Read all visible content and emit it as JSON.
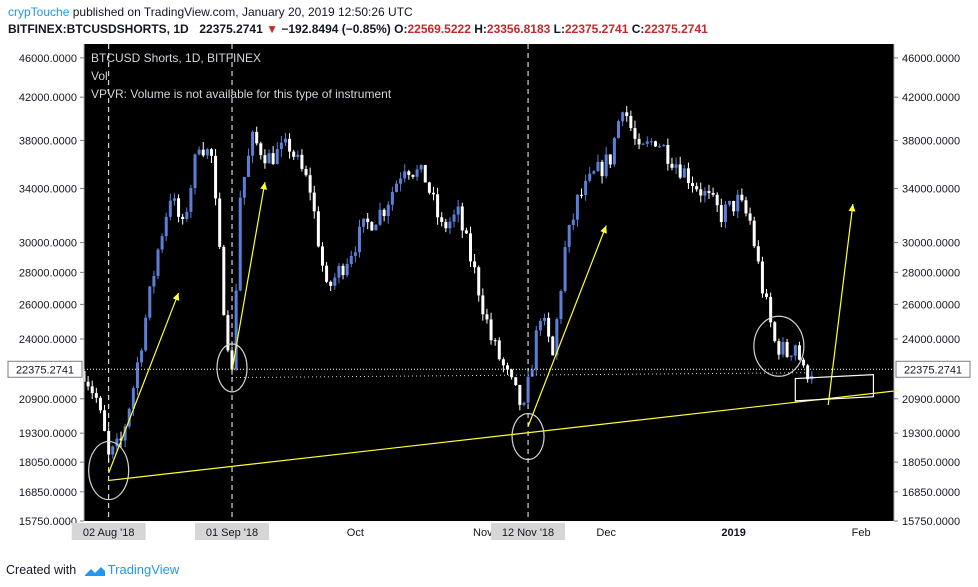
{
  "header": {
    "author": "crypTouche",
    "published_text": "published on TradingView.com, January 20, 2019 12:50:26 UTC",
    "symbol": "BITFINEX:BTCUSDSHORTS, 1D",
    "last": "22375.2741",
    "change_arrow": "▼",
    "change": "−192.8494 (−0.85%)",
    "o_label": "O:",
    "o_value": "22569.5222",
    "h_label": "H:",
    "h_value": "23356.8183",
    "l_label": "L:",
    "l_value": "22375.2741",
    "c_label": "C:",
    "c_value": "22375.2741"
  },
  "legend": {
    "title": "BTCUSD Shorts, 1D, BITFINEX",
    "vol": "Vol",
    "vpvr": "VPVR: Volume is not available for this type of instrument"
  },
  "footer": {
    "created_with": "Created with",
    "brand": "TradingView",
    "logo_icon": "tradingview-logo-icon"
  },
  "colors": {
    "up": "#5b7fd6",
    "down": "#ffffff",
    "background": "#000000",
    "annotation": "#ffff33",
    "price_line": "#ffffff"
  },
  "chart_data": {
    "type": "candlestick",
    "title": "BTCUSD Shorts, 1D, BITFINEX",
    "y_scale": "log",
    "ylim": [
      15750,
      47500
    ],
    "y_ticks": [
      "46000.0000",
      "42000.0000",
      "38000.0000",
      "34000.0000",
      "30000.0000",
      "28000.0000",
      "26000.0000",
      "24000.0000",
      "20900.0000",
      "19300.0000",
      "18050.0000",
      "16850.0000",
      "15750.0000"
    ],
    "x_range": [
      "2018-07-27",
      "2019-02-09"
    ],
    "x_ticks": [
      {
        "date": "2018-08-02",
        "label": "02 Aug '18",
        "boxed": true
      },
      {
        "date": "2018-09-01",
        "label": "01 Sep '18",
        "boxed": true
      },
      {
        "date": "2018-10-01",
        "label": "Oct",
        "boxed": false
      },
      {
        "date": "2018-11-01",
        "label": "Nov",
        "boxed": false
      },
      {
        "date": "2018-11-12",
        "label": "12 Nov '18",
        "boxed": true
      },
      {
        "date": "2018-12-01",
        "label": "Dec",
        "boxed": false
      },
      {
        "date": "2019-01-01",
        "label": "2019",
        "boxed": false,
        "bold": true
      },
      {
        "date": "2019-02-01",
        "label": "Feb",
        "boxed": false
      }
    ],
    "vertical_markers": [
      "2018-08-02",
      "2018-09-01",
      "2018-11-12"
    ],
    "last_price": {
      "value": 22375.2741,
      "label": "22375.2741"
    },
    "candle_anchors": [
      [
        "2018-07-27",
        22300
      ],
      [
        "2018-07-30",
        20900
      ],
      [
        "2018-08-01",
        19200
      ],
      [
        "2018-08-02",
        18200
      ],
      [
        "2018-08-05",
        18900
      ],
      [
        "2018-08-08",
        21500
      ],
      [
        "2018-08-11",
        25200
      ],
      [
        "2018-08-14",
        29500
      ],
      [
        "2018-08-17",
        33500
      ],
      [
        "2018-08-20",
        31000
      ],
      [
        "2018-08-24",
        38000
      ],
      [
        "2018-08-27",
        36500
      ],
      [
        "2018-08-30",
        26000
      ],
      [
        "2018-09-01",
        22100
      ],
      [
        "2018-09-03",
        33500
      ],
      [
        "2018-09-06",
        38000
      ],
      [
        "2018-09-10",
        36500
      ],
      [
        "2018-09-15",
        37500
      ],
      [
        "2018-09-20",
        34000
      ],
      [
        "2018-09-24",
        26800
      ],
      [
        "2018-09-28",
        28500
      ],
      [
        "2018-10-03",
        31000
      ],
      [
        "2018-10-08",
        32500
      ],
      [
        "2018-10-13",
        36000
      ],
      [
        "2018-10-18",
        34800
      ],
      [
        "2018-10-22",
        31000
      ],
      [
        "2018-10-26",
        32000
      ],
      [
        "2018-10-30",
        28000
      ],
      [
        "2018-11-03",
        24000
      ],
      [
        "2018-11-07",
        22000
      ],
      [
        "2018-11-11",
        20300
      ],
      [
        "2018-11-13",
        22800
      ],
      [
        "2018-11-15",
        25500
      ],
      [
        "2018-11-18",
        23000
      ],
      [
        "2018-11-21",
        29500
      ],
      [
        "2018-11-24",
        33000
      ],
      [
        "2018-11-28",
        35000
      ],
      [
        "2018-12-02",
        36500
      ],
      [
        "2018-12-05",
        41500
      ],
      [
        "2018-12-09",
        36800
      ],
      [
        "2018-12-13",
        38200
      ],
      [
        "2018-12-17",
        36500
      ],
      [
        "2018-12-21",
        35000
      ],
      [
        "2018-12-25",
        33500
      ],
      [
        "2018-12-29",
        32000
      ],
      [
        "2019-01-02",
        33000
      ],
      [
        "2019-01-05",
        31500
      ],
      [
        "2019-01-08",
        27000
      ],
      [
        "2019-01-11",
        23800
      ],
      [
        "2019-01-14",
        23200
      ],
      [
        "2019-01-16",
        23800
      ],
      [
        "2019-01-18",
        22200
      ],
      [
        "2019-01-20",
        22375
      ]
    ],
    "annotations": [
      {
        "type": "trendline",
        "from": [
          "2018-08-02",
          17300
        ],
        "to": [
          "2019-02-10",
          21300
        ]
      },
      {
        "type": "arrow",
        "from": [
          "2018-08-02",
          17600
        ],
        "to": [
          "2018-08-19",
          26700
        ]
      },
      {
        "type": "arrow",
        "from": [
          "2018-09-01",
          22300
        ],
        "to": [
          "2018-09-09",
          34500
        ]
      },
      {
        "type": "arrow",
        "from": [
          "2018-11-12",
          19600
        ],
        "to": [
          "2018-12-01",
          31200
        ]
      },
      {
        "type": "arrow",
        "from": [
          "2019-01-24",
          20600
        ],
        "to": [
          "2019-01-30",
          32800
        ]
      },
      {
        "type": "ellipse",
        "center": [
          "2018-08-02",
          17700
        ],
        "rx": 20,
        "ry": 29
      },
      {
        "type": "ellipse",
        "center": [
          "2018-09-01",
          22450
        ],
        "rx": 15,
        "ry": 24
      },
      {
        "type": "ellipse",
        "center": [
          "2018-11-12",
          19150
        ],
        "rx": 16,
        "ry": 23
      },
      {
        "type": "ellipse",
        "center": [
          "2019-01-12",
          23600
        ],
        "rx": 25,
        "ry": 30
      },
      {
        "type": "box",
        "corners": [
          [
            "2019-01-16",
            20800
          ],
          [
            "2019-01-16",
            21900
          ],
          [
            "2019-02-04",
            22100
          ],
          [
            "2019-02-04",
            21000
          ]
        ]
      },
      {
        "type": "dotted_line",
        "from": [
          "2018-09-01",
          21950
        ],
        "to": [
          "2019-01-20",
          22200
        ]
      }
    ]
  }
}
